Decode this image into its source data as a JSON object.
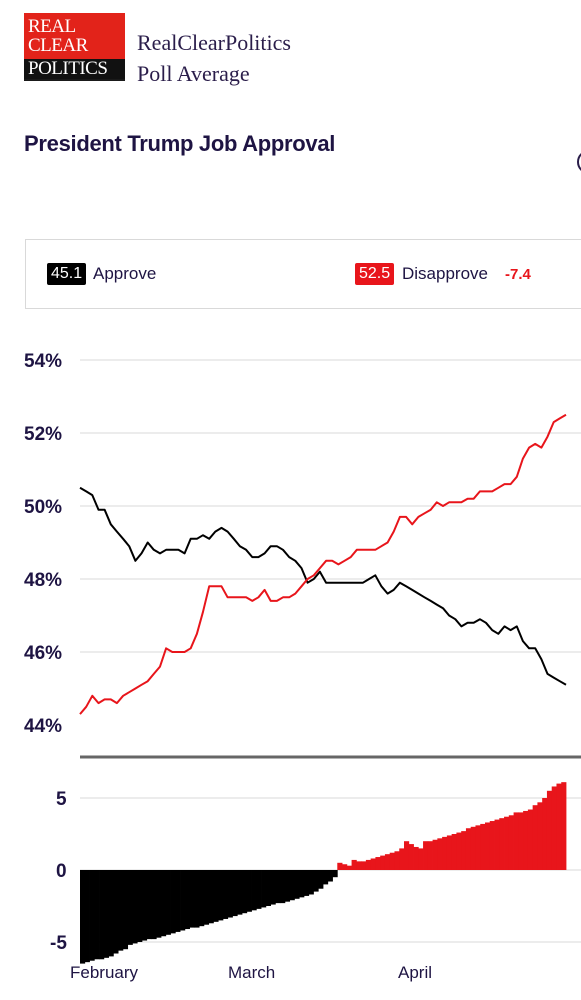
{
  "logo": {
    "line1": "REAL",
    "line2": "CLEAR",
    "line3": "POLITICS"
  },
  "brand": {
    "line1": "RealClearPolitics",
    "line2": "Poll Average"
  },
  "title": "President Trump Job Approval",
  "legend": {
    "approve": {
      "value": "45.1",
      "label": "Approve"
    },
    "disapprove": {
      "value": "52.5",
      "label": "Disapprove",
      "spread": "-7.4"
    }
  },
  "colors": {
    "approve": "#000000",
    "disapprove": "#e8151b",
    "text": "#1e1443",
    "grid": "#d9d9d9"
  },
  "chart_data": [
    {
      "type": "line",
      "title": "",
      "ylim": [
        44,
        54
      ],
      "y_ticks": [
        "54%",
        "52%",
        "50%",
        "48%",
        "46%",
        "44%"
      ],
      "y_tick_values": [
        54,
        52,
        50,
        48,
        46,
        44
      ],
      "x_labels": [
        "February",
        "March",
        "April"
      ],
      "grid": true,
      "series": [
        {
          "name": "Approve",
          "color": "#000000",
          "values": [
            50.5,
            50.4,
            50.3,
            49.9,
            49.9,
            49.5,
            49.3,
            49.1,
            48.9,
            48.5,
            48.7,
            49.0,
            48.8,
            48.7,
            48.8,
            48.8,
            48.8,
            48.7,
            49.1,
            49.1,
            49.2,
            49.1,
            49.3,
            49.4,
            49.3,
            49.1,
            48.9,
            48.8,
            48.6,
            48.6,
            48.7,
            48.9,
            48.9,
            48.8,
            48.6,
            48.5,
            48.3,
            47.9,
            48.0,
            48.2,
            47.9,
            47.9,
            47.9,
            47.9,
            47.9,
            47.9,
            47.9,
            48.0,
            48.1,
            47.8,
            47.6,
            47.7,
            47.9,
            47.8,
            47.7,
            47.6,
            47.5,
            47.4,
            47.3,
            47.2,
            47.0,
            46.9,
            46.7,
            46.8,
            46.8,
            46.9,
            46.8,
            46.6,
            46.5,
            46.7,
            46.6,
            46.7,
            46.3,
            46.1,
            46.1,
            45.8,
            45.4,
            45.3,
            45.2,
            45.1
          ]
        },
        {
          "name": "Disapprove",
          "color": "#e8151b",
          "values": [
            44.3,
            44.5,
            44.8,
            44.6,
            44.7,
            44.7,
            44.6,
            44.8,
            44.9,
            45.0,
            45.1,
            45.2,
            45.4,
            45.6,
            46.1,
            46.0,
            46.0,
            46.0,
            46.1,
            46.5,
            47.1,
            47.8,
            47.8,
            47.8,
            47.5,
            47.5,
            47.5,
            47.5,
            47.4,
            47.5,
            47.7,
            47.4,
            47.4,
            47.5,
            47.5,
            47.6,
            47.8,
            48.0,
            48.1,
            48.3,
            48.5,
            48.5,
            48.4,
            48.5,
            48.6,
            48.8,
            48.8,
            48.8,
            48.8,
            48.9,
            49.0,
            49.3,
            49.7,
            49.7,
            49.5,
            49.7,
            49.8,
            49.9,
            50.1,
            50.0,
            50.1,
            50.1,
            50.1,
            50.2,
            50.2,
            50.4,
            50.4,
            50.4,
            50.5,
            50.6,
            50.6,
            50.8,
            51.3,
            51.6,
            51.7,
            51.6,
            51.9,
            52.3,
            52.4,
            52.5
          ]
        }
      ]
    },
    {
      "type": "bar",
      "title": "",
      "ylim": [
        -7,
        7
      ],
      "y_ticks": [
        "5",
        "0",
        "-5"
      ],
      "y_tick_values": [
        5,
        0,
        -5
      ],
      "x_labels": [
        "February",
        "March",
        "April"
      ],
      "colors": {
        "positive": "#e8151b",
        "negative": "#000000"
      },
      "values": [
        -6.5,
        -6.4,
        -6.3,
        -6.2,
        -6.2,
        -6.1,
        -6.0,
        -5.8,
        -5.6,
        -5.5,
        -5.2,
        -5.1,
        -5.0,
        -4.9,
        -4.8,
        -4.8,
        -4.7,
        -4.6,
        -4.5,
        -4.4,
        -4.3,
        -4.2,
        -4.1,
        -4.0,
        -4.0,
        -3.9,
        -3.8,
        -3.7,
        -3.6,
        -3.5,
        -3.4,
        -3.3,
        -3.2,
        -3.1,
        -3.0,
        -2.9,
        -2.8,
        -2.7,
        -2.6,
        -2.5,
        -2.4,
        -2.3,
        -2.3,
        -2.2,
        -2.1,
        -2.0,
        -1.9,
        -1.8,
        -1.7,
        -1.5,
        -1.3,
        -1.0,
        -0.8,
        -0.5,
        0.5,
        0.4,
        0.3,
        0.7,
        0.6,
        0.6,
        0.7,
        0.8,
        0.9,
        1.0,
        1.1,
        1.2,
        1.3,
        1.5,
        2.0,
        1.8,
        1.6,
        1.5,
        2.0,
        2.0,
        2.1,
        2.2,
        2.3,
        2.4,
        2.5,
        2.6,
        2.7,
        2.9,
        3.0,
        3.1,
        3.2,
        3.3,
        3.4,
        3.5,
        3.6,
        3.7,
        3.8,
        4.0,
        4.0,
        4.1,
        4.2,
        4.5,
        4.7,
        5.0,
        5.5,
        5.8,
        6.0,
        6.1
      ]
    }
  ]
}
